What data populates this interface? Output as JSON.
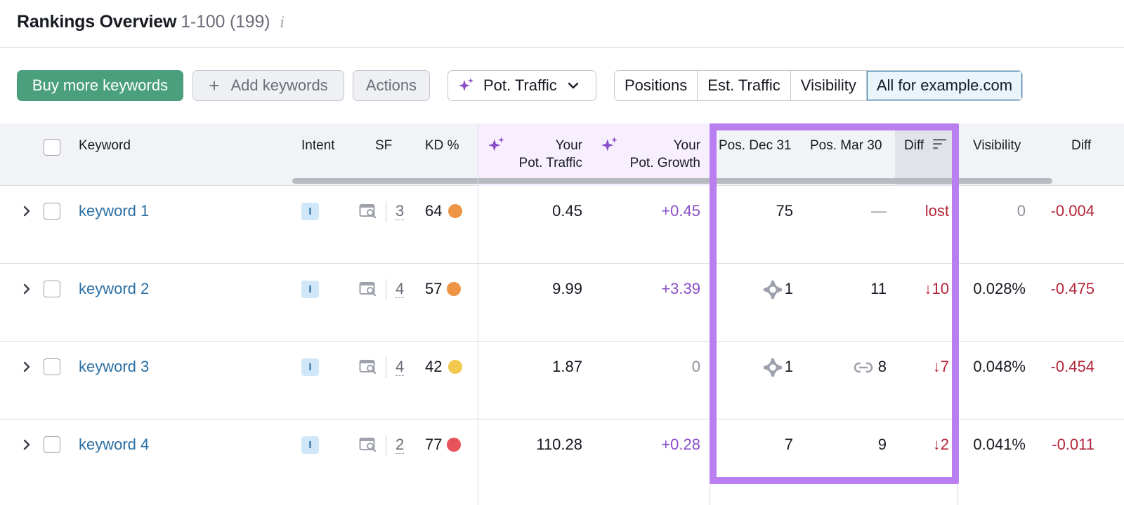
{
  "header": {
    "title": "Rankings Overview",
    "range": "1-100 (199)",
    "info_glyph": "i"
  },
  "toolbar": {
    "buy_label": "Buy more keywords",
    "add_label": "Add keywords",
    "add_glyph": "+",
    "actions_label": "Actions",
    "pot_traffic_label": "Pot. Traffic",
    "segments": [
      "Positions",
      "Est. Traffic",
      "Visibility",
      "All for example.com"
    ],
    "active_segment": "All for example.com"
  },
  "columns": {
    "keyword": "Keyword",
    "intent": "Intent",
    "sf": "SF",
    "kd": "KD %",
    "pot_traffic_1": "Your",
    "pot_traffic_2": "Pot. Traffic",
    "pot_growth_1": "Your",
    "pot_growth_2": "Pot. Growth",
    "pos_dec": "Pos. Dec 31",
    "pos_mar": "Pos. Mar 30",
    "diff": "Diff",
    "visibility": "Visibility",
    "diff2": "Diff"
  },
  "rows": [
    {
      "keyword": "keyword 1",
      "intent": "I",
      "sf": "3",
      "kd": "64",
      "kd_color": "#ee9445",
      "pot_traffic": "0.45",
      "pot_growth": "+0.45",
      "pos_dec": "75",
      "pos_mar": "—",
      "diff": "lost",
      "visibility": "0",
      "diff2": "-0.004"
    },
    {
      "keyword": "keyword 2",
      "intent": "I",
      "sf": "4",
      "kd": "57",
      "kd_color": "#ee9445",
      "pot_traffic": "9.99",
      "pot_growth": "+3.39",
      "pos_dec": "1",
      "pos_mar": "11",
      "diff": "↓10",
      "visibility": "0.028%",
      "diff2": "-0.475"
    },
    {
      "keyword": "keyword 3",
      "intent": "I",
      "sf": "4",
      "kd": "42",
      "kd_color": "#f3c84f",
      "pot_traffic": "1.87",
      "pot_growth": "0",
      "pos_dec": "1",
      "pos_mar": "8",
      "diff": "↓7",
      "visibility": "0.048%",
      "diff2": "-0.454"
    },
    {
      "keyword": "keyword 4",
      "intent": "I",
      "sf": "2",
      "kd": "77",
      "kd_color": "#e8525b",
      "pot_traffic": "110.28",
      "pot_growth": "+0.28",
      "pos_dec": "7",
      "pos_mar": "9",
      "diff": "↓2",
      "visibility": "0.041%",
      "diff2": "-0.011"
    }
  ],
  "colors": {
    "primary": "#4aa07d",
    "link": "#2b6fa3",
    "purple": "#8a4fc7",
    "negative": "#b3263a",
    "highlight": "#b97ff0"
  },
  "icons": {
    "sparkle": "sparkle-icon",
    "chevron_down": "chevron-down-icon",
    "chevron_right": "chevron-right-icon",
    "sort": "sort-icon",
    "serp_feature": "serp-feature-icon",
    "ai_overview": "ai-overview-icon",
    "link": "link-icon"
  }
}
